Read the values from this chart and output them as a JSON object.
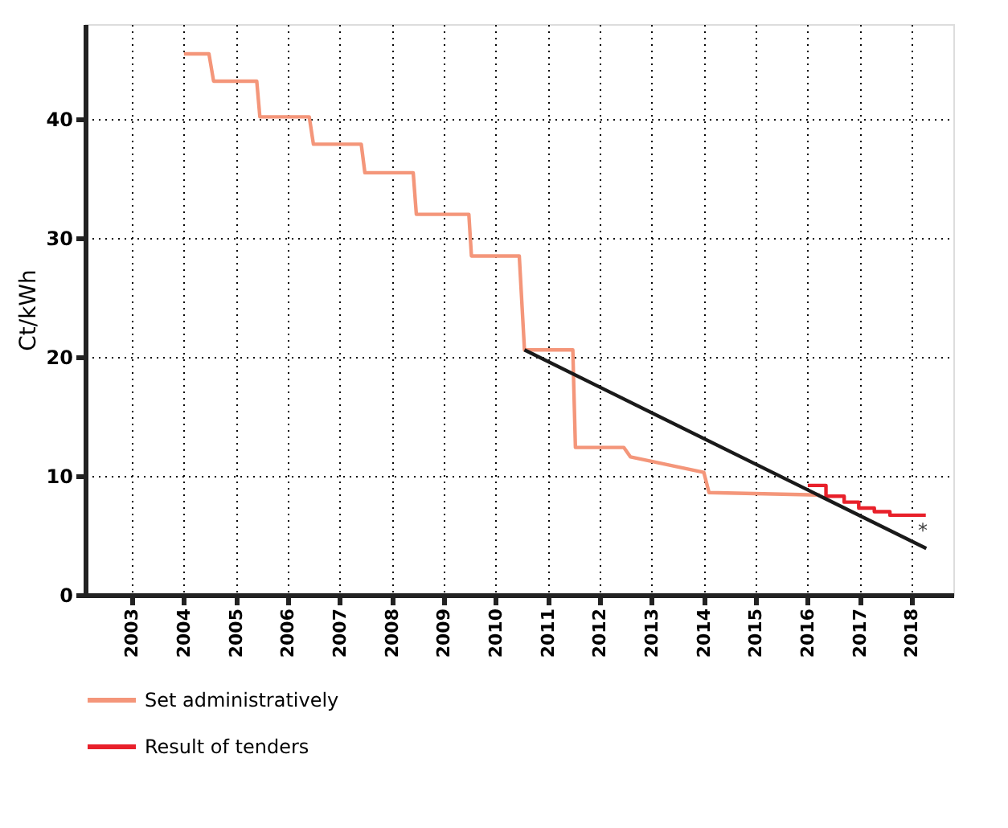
{
  "chart_data": {
    "type": "line",
    "ylabel": "Ct/kWh",
    "xlim": [
      2002.1,
      2018.8
    ],
    "xticks": [
      2003,
      2004,
      2005,
      2006,
      2007,
      2008,
      2009,
      2010,
      2011,
      2012,
      2013,
      2014,
      2015,
      2016,
      2017,
      2018
    ],
    "ylim": [
      0,
      48
    ],
    "yticks": [
      0,
      10,
      20,
      30,
      40
    ],
    "grid": true,
    "legend": "bottom",
    "line_style": "solid",
    "marker": "none",
    "series": [
      {
        "name": "Set administratively",
        "color": "#f4967a",
        "x": [
          2004.0,
          2004.48,
          2004.57,
          2005.4,
          2005.46,
          2006.41,
          2006.49,
          2007.41,
          2007.48,
          2008.41,
          2008.47,
          2009.48,
          2009.53,
          2010.45,
          2010.55,
          2011.48,
          2011.53,
          2012.46,
          2012.59,
          2014.0,
          2014.1,
          2016.23
        ],
        "values": [
          45.5,
          45.5,
          43.2,
          43.2,
          40.2,
          40.2,
          37.9,
          37.9,
          35.5,
          35.5,
          32.0,
          32.0,
          28.5,
          28.5,
          20.6,
          20.6,
          12.4,
          12.4,
          11.6,
          10.3,
          8.6,
          8.4
        ]
      },
      {
        "name": "Result of tenders",
        "color": "#e8202a",
        "x": [
          2016.0,
          2016.35,
          2016.35,
          2016.7,
          2016.7,
          2016.98,
          2016.98,
          2017.28,
          2017.28,
          2017.58,
          2017.58,
          2018.27
        ],
        "values": [
          9.2,
          9.2,
          8.3,
          8.3,
          7.8,
          7.8,
          7.3,
          7.3,
          7.0,
          7.0,
          6.7,
          6.7
        ]
      },
      {
        "color": "#1a1a1a",
        "x": [
          2010.55,
          2018.28
        ],
        "values": [
          20.6,
          3.9
        ]
      }
    ],
    "annotations": [
      "*"
    ]
  }
}
